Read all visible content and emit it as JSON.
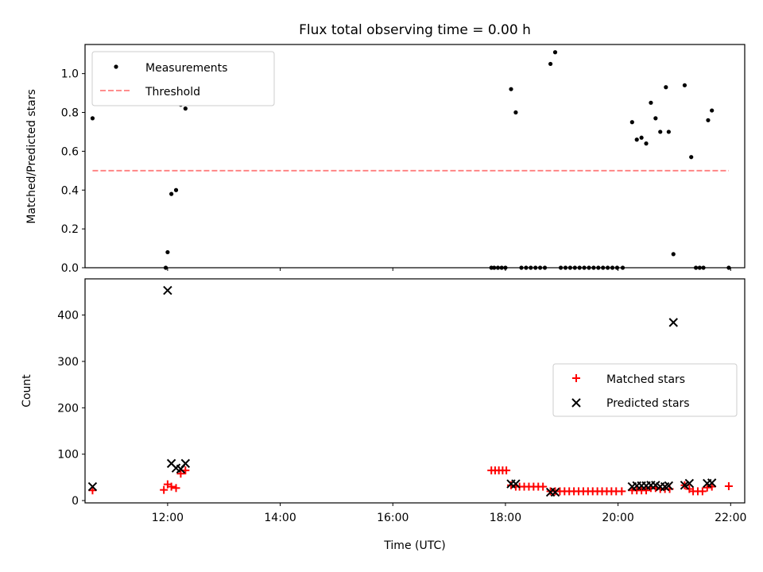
{
  "title": "Flux total observing time = 0.00 h",
  "colors": {
    "measurement": "#000000",
    "threshold": "#ff7f7f",
    "matched": "#ff0000",
    "predicted": "#000000",
    "axes": "#000000"
  },
  "chart_data": [
    {
      "type": "scatter",
      "panel": "top",
      "title": "Flux total observing time = 0.00 h",
      "xlabel": "",
      "ylabel": "Matched/Predicted stars",
      "xlim": [
        "10:32",
        "22:15"
      ],
      "ylim": [
        0,
        1.15
      ],
      "yticks": [
        0.0,
        0.2,
        0.4,
        0.6,
        0.8,
        1.0
      ],
      "ytick_labels": [
        "0.0",
        "0.2",
        "0.4",
        "0.6",
        "0.8",
        "1.0"
      ],
      "xticks": [
        "12:00",
        "14:00",
        "16:00",
        "18:00",
        "20:00",
        "22:00"
      ],
      "legend_position": "top-left",
      "legend": [
        "Measurements",
        "Threshold"
      ],
      "series": [
        {
          "name": "Measurements",
          "marker": "dot",
          "points": [
            [
              "10:40",
              0.77
            ],
            [
              "11:58",
              0.0
            ],
            [
              "12:00",
              0.08
            ],
            [
              "12:04",
              0.38
            ],
            [
              "12:09",
              0.4
            ],
            [
              "12:14",
              0.84
            ],
            [
              "12:19",
              0.82
            ],
            [
              "17:45",
              0.0
            ],
            [
              "17:48",
              0.0
            ],
            [
              "17:52",
              0.0
            ],
            [
              "17:56",
              0.0
            ],
            [
              "18:00",
              0.0
            ],
            [
              "18:06",
              0.92
            ],
            [
              "18:11",
              0.8
            ],
            [
              "18:17",
              0.0
            ],
            [
              "18:22",
              0.0
            ],
            [
              "18:27",
              0.0
            ],
            [
              "18:32",
              0.0
            ],
            [
              "18:37",
              0.0
            ],
            [
              "18:42",
              0.0
            ],
            [
              "18:48",
              1.05
            ],
            [
              "18:53",
              1.11
            ],
            [
              "18:59",
              0.0
            ],
            [
              "19:04",
              0.0
            ],
            [
              "19:09",
              0.0
            ],
            [
              "19:14",
              0.0
            ],
            [
              "19:19",
              0.0
            ],
            [
              "19:24",
              0.0
            ],
            [
              "19:29",
              0.0
            ],
            [
              "19:34",
              0.0
            ],
            [
              "19:39",
              0.0
            ],
            [
              "19:44",
              0.0
            ],
            [
              "19:49",
              0.0
            ],
            [
              "19:54",
              0.0
            ],
            [
              "19:59",
              0.0
            ],
            [
              "20:05",
              0.0
            ],
            [
              "20:15",
              0.75
            ],
            [
              "20:20",
              0.66
            ],
            [
              "20:25",
              0.67
            ],
            [
              "20:30",
              0.64
            ],
            [
              "20:35",
              0.85
            ],
            [
              "20:40",
              0.77
            ],
            [
              "20:45",
              0.7
            ],
            [
              "20:51",
              0.93
            ],
            [
              "20:54",
              0.7
            ],
            [
              "20:59",
              0.07
            ],
            [
              "21:11",
              0.94
            ],
            [
              "21:18",
              0.57
            ],
            [
              "21:23",
              0.0
            ],
            [
              "21:27",
              0.0
            ],
            [
              "21:31",
              0.0
            ],
            [
              "21:36",
              0.76
            ],
            [
              "21:40",
              0.81
            ],
            [
              "21:58",
              0.0
            ]
          ]
        },
        {
          "name": "Threshold",
          "marker": "dashed-line",
          "points": [
            [
              "10:40",
              0.5
            ],
            [
              "21:58",
              0.5
            ]
          ]
        }
      ]
    },
    {
      "type": "scatter",
      "panel": "bottom",
      "xlabel": "Time (UTC)",
      "ylabel": "Count",
      "xlim": [
        "10:32",
        "22:15"
      ],
      "ylim": [
        -5,
        478
      ],
      "yticks": [
        0,
        100,
        200,
        300,
        400
      ],
      "ytick_labels": [
        "0",
        "100",
        "200",
        "300",
        "400"
      ],
      "xticks": [
        "12:00",
        "14:00",
        "16:00",
        "18:00",
        "20:00",
        "22:00"
      ],
      "xtick_labels": [
        "12:00",
        "14:00",
        "16:00",
        "18:00",
        "20:00",
        "22:00"
      ],
      "legend_position": "center-right",
      "legend": [
        "Matched stars",
        "Predicted stars"
      ],
      "series": [
        {
          "name": "Matched stars",
          "marker": "plus",
          "points": [
            [
              "10:40",
              22
            ],
            [
              "11:56",
              23
            ],
            [
              "12:00",
              35
            ],
            [
              "12:04",
              30
            ],
            [
              "12:09",
              27
            ],
            [
              "12:14",
              58
            ],
            [
              "12:19",
              65
            ],
            [
              "17:45",
              65
            ],
            [
              "17:49",
              65
            ],
            [
              "17:53",
              65
            ],
            [
              "17:57",
              65
            ],
            [
              "18:01",
              65
            ],
            [
              "18:06",
              33
            ],
            [
              "18:11",
              30
            ],
            [
              "18:15",
              30
            ],
            [
              "18:20",
              30
            ],
            [
              "18:25",
              30
            ],
            [
              "18:30",
              30
            ],
            [
              "18:35",
              30
            ],
            [
              "18:40",
              30
            ],
            [
              "18:48",
              20
            ],
            [
              "18:53",
              20
            ],
            [
              "18:58",
              20
            ],
            [
              "19:03",
              20
            ],
            [
              "19:08",
              20
            ],
            [
              "19:13",
              20
            ],
            [
              "19:18",
              20
            ],
            [
              "19:23",
              20
            ],
            [
              "19:28",
              20
            ],
            [
              "19:33",
              20
            ],
            [
              "19:38",
              20
            ],
            [
              "19:43",
              20
            ],
            [
              "19:48",
              20
            ],
            [
              "19:53",
              20
            ],
            [
              "19:58",
              20
            ],
            [
              "20:04",
              20
            ],
            [
              "20:15",
              22
            ],
            [
              "20:20",
              22
            ],
            [
              "20:25",
              22
            ],
            [
              "20:30",
              22
            ],
            [
              "20:35",
              27
            ],
            [
              "20:40",
              27
            ],
            [
              "20:45",
              25
            ],
            [
              "20:50",
              25
            ],
            [
              "20:55",
              25
            ],
            [
              "21:11",
              33
            ],
            [
              "21:16",
              25
            ],
            [
              "21:20",
              20
            ],
            [
              "21:25",
              20
            ],
            [
              "21:30",
              20
            ],
            [
              "21:35",
              28
            ],
            [
              "21:40",
              30
            ],
            [
              "21:58",
              31
            ]
          ]
        },
        {
          "name": "Predicted stars",
          "marker": "x",
          "points": [
            [
              "10:40",
              30
            ],
            [
              "12:00",
              453
            ],
            [
              "12:04",
              80
            ],
            [
              "12:09",
              70
            ],
            [
              "12:14",
              68
            ],
            [
              "12:19",
              80
            ],
            [
              "18:06",
              36
            ],
            [
              "18:11",
              36
            ],
            [
              "18:48",
              18
            ],
            [
              "18:53",
              18
            ],
            [
              "20:15",
              30
            ],
            [
              "20:20",
              32
            ],
            [
              "20:25",
              32
            ],
            [
              "20:30",
              32
            ],
            [
              "20:35",
              33
            ],
            [
              "20:40",
              33
            ],
            [
              "20:45",
              30
            ],
            [
              "20:50",
              30
            ],
            [
              "20:54",
              32
            ],
            [
              "20:59",
              384
            ],
            [
              "21:11",
              33
            ],
            [
              "21:16",
              37
            ],
            [
              "21:35",
              37
            ],
            [
              "21:40",
              38
            ]
          ]
        }
      ]
    }
  ]
}
